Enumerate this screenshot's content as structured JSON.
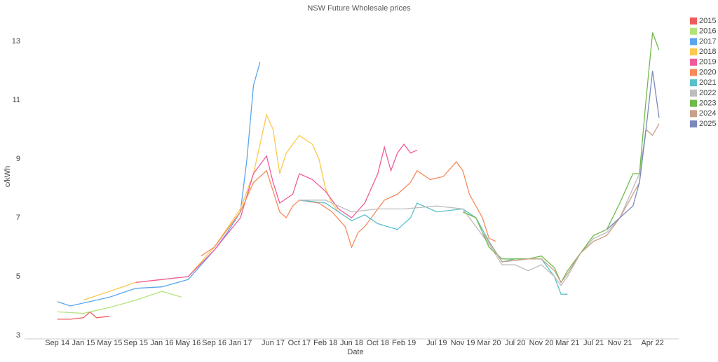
{
  "chart_data": {
    "type": "line",
    "title": "NSW Future Wholesale prices",
    "x_label": "Date",
    "y_label": "c/kWh",
    "xlim": [
      "Apr 14",
      "Aug 22"
    ],
    "ylim": [
      2.88,
      13.74
    ],
    "yticks": [
      3,
      5,
      7,
      9,
      11,
      13
    ],
    "grid": false,
    "legend": "right",
    "xticks": [
      "Sep 14",
      "Jan 15",
      "May 15",
      "Sep 15",
      "Jan 16",
      "May 16",
      "Sep 16",
      "Jan 17",
      "Jun 17",
      "Oct 17",
      "Feb 18",
      "Jun 18",
      "Oct 18",
      "Feb 19",
      "Jul 19",
      "Nov 19",
      "Mar 20",
      "Jul 20",
      "Nov 20",
      "Mar 21",
      "Jul 21",
      "Nov 21",
      "Apr 22"
    ],
    "series": [
      {
        "name": "2015",
        "color": "#ef5b5b",
        "x": [
          "Sep 14",
          "Nov 14",
          "Jan 15",
          "Feb 15",
          "Mar 15",
          "May 15"
        ],
        "values": [
          3.55,
          3.55,
          3.6,
          3.8,
          3.6,
          3.65
        ]
      },
      {
        "name": "2016",
        "color": "#b5e27d",
        "x": [
          "Sep 14",
          "Jan 15",
          "May 15",
          "Sep 15",
          "Jan 16",
          "Apr 16"
        ],
        "values": [
          3.8,
          3.75,
          3.95,
          4.2,
          4.5,
          4.3
        ]
      },
      {
        "name": "2017",
        "color": "#5aa5ef",
        "x": [
          "Sep 14",
          "Nov 14",
          "Jan 15",
          "May 15",
          "Sep 15",
          "Jan 16",
          "May 16",
          "Sep 16",
          "Nov 16",
          "Jan 17",
          "Feb 17",
          "Mar 17",
          "Apr 17"
        ],
        "values": [
          4.15,
          4.0,
          4.1,
          4.3,
          4.6,
          4.65,
          4.9,
          5.9,
          6.5,
          7.2,
          9.0,
          11.5,
          12.3
        ]
      },
      {
        "name": "2018",
        "color": "#fdc84e",
        "x": [
          "Jan 15",
          "May 15",
          "Sep 15",
          "Jan 16",
          "May 16",
          "Sep 16",
          "Jan 17",
          "Mar 17",
          "May 17",
          "Jun 17",
          "Jul 17",
          "Aug 17",
          "Oct 17",
          "Dec 17",
          "Jan 18",
          "Feb 18",
          "Mar 18",
          "Apr 18"
        ],
        "values": [
          4.2,
          4.5,
          4.8,
          4.9,
          5.0,
          6.0,
          7.3,
          8.5,
          10.5,
          10.0,
          8.5,
          9.2,
          9.8,
          9.5,
          9.0,
          8.0,
          7.5,
          7.2
        ]
      },
      {
        "name": "2019",
        "color": "#ef5b9c",
        "x": [
          "Sep 15",
          "Jan 16",
          "May 16",
          "Sep 16",
          "Jan 17",
          "Mar 17",
          "May 17",
          "Jun 17",
          "Jul 17",
          "Sep 17",
          "Oct 17",
          "Dec 17",
          "Feb 18",
          "Apr 18",
          "Jun 18",
          "Aug 18",
          "Oct 18",
          "Nov 18",
          "Dec 18",
          "Jan 19",
          "Feb 19",
          "Mar 19",
          "Apr 19"
        ],
        "values": [
          4.8,
          4.9,
          5.0,
          5.9,
          7.0,
          8.5,
          9.1,
          8.2,
          7.5,
          7.8,
          8.5,
          8.3,
          7.9,
          7.3,
          7.0,
          7.5,
          8.5,
          9.4,
          8.6,
          9.2,
          9.5,
          9.2,
          9.3
        ]
      },
      {
        "name": "2020",
        "color": "#f58a5b",
        "x": [
          "Jul 16",
          "Sep 16",
          "Jan 17",
          "Mar 17",
          "May 17",
          "Jul 17",
          "Aug 17",
          "Sep 17",
          "Oct 17",
          "Jan 18",
          "Mar 18",
          "May 18",
          "Jun 18",
          "Jul 18",
          "Aug 18",
          "Oct 18",
          "Nov 18",
          "Jan 19",
          "Mar 19",
          "Apr 19",
          "Jun 19",
          "Aug 19",
          "Oct 19",
          "Nov 19",
          "Dec 19",
          "Feb 20",
          "Mar 20",
          "Apr 20"
        ],
        "values": [
          5.7,
          6.0,
          7.2,
          8.2,
          8.6,
          7.2,
          7.0,
          7.4,
          7.6,
          7.5,
          7.2,
          6.7,
          6.0,
          6.5,
          6.7,
          7.3,
          7.6,
          7.8,
          8.2,
          8.6,
          8.3,
          8.4,
          8.9,
          8.6,
          7.8,
          7.0,
          6.3,
          6.2
        ]
      },
      {
        "name": "2021",
        "color": "#5bc0c9",
        "x": [
          "Oct 17",
          "Feb 18",
          "Jun 18",
          "Aug 18",
          "Oct 18",
          "Jan 19",
          "Mar 19",
          "Apr 19",
          "Jul 19",
          "Nov 19",
          "Jan 20",
          "Mar 20",
          "May 20",
          "Jul 20",
          "Sep 20",
          "Nov 20",
          "Jan 21",
          "Feb 21",
          "Mar 21"
        ],
        "values": [
          7.6,
          7.5,
          6.9,
          7.1,
          6.8,
          6.6,
          7.0,
          7.5,
          7.2,
          7.3,
          7.0,
          6.2,
          5.5,
          5.6,
          5.6,
          5.6,
          5.0,
          4.4,
          4.4
        ]
      },
      {
        "name": "2022",
        "color": "#bdbdbd",
        "x": [
          "Oct 17",
          "Feb 18",
          "Jun 18",
          "Oct 18",
          "Feb 19",
          "Jul 19",
          "Nov 19",
          "Mar 20",
          "May 20",
          "Jul 20",
          "Sep 20",
          "Nov 20",
          "Jan 21",
          "Feb 21",
          "Mar 21",
          "May 21",
          "Jul 21",
          "Sep 21",
          "Nov 21",
          "Jan 22",
          "Feb 22",
          "Mar 22"
        ],
        "values": [
          7.6,
          7.6,
          7.2,
          7.3,
          7.3,
          7.4,
          7.3,
          6.1,
          5.4,
          5.4,
          5.2,
          5.4,
          5.0,
          4.7,
          5.0,
          5.8,
          6.3,
          6.5,
          7.0,
          8.0,
          8.5,
          10.0
        ]
      },
      {
        "name": "2023",
        "color": "#6fba4c",
        "x": [
          "Nov 19",
          "Jan 20",
          "Mar 20",
          "May 20",
          "Jul 20",
          "Sep 20",
          "Nov 20",
          "Jan 21",
          "Feb 21",
          "Mar 21",
          "May 21",
          "Jul 21",
          "Sep 21",
          "Nov 21",
          "Jan 22",
          "Feb 22",
          "Mar 22",
          "Apr 22",
          "May 22"
        ],
        "values": [
          7.2,
          7.0,
          6.0,
          5.6,
          5.6,
          5.6,
          5.7,
          5.3,
          4.8,
          5.2,
          5.8,
          6.4,
          6.6,
          7.5,
          8.5,
          8.5,
          11.0,
          13.3,
          12.7
        ]
      },
      {
        "name": "2024",
        "color": "#c8a08a",
        "x": [
          "Feb 20",
          "May 20",
          "Sep 20",
          "Nov 20",
          "Jan 21",
          "Feb 21",
          "Mar 21",
          "May 21",
          "Jul 21",
          "Sep 21",
          "Nov 21",
          "Jan 22",
          "Feb 22",
          "Mar 22",
          "Apr 22",
          "May 22"
        ],
        "values": [
          6.5,
          5.5,
          5.6,
          5.6,
          5.2,
          4.8,
          5.1,
          5.8,
          6.2,
          6.4,
          7.0,
          7.8,
          8.2,
          10.0,
          9.8,
          10.2
        ]
      },
      {
        "name": "2025",
        "color": "#7b88b8",
        "x": [
          "Sep 21",
          "Nov 21",
          "Jan 22",
          "Feb 22",
          "Mar 22",
          "Apr 22",
          "May 22"
        ],
        "values": [
          6.6,
          7.0,
          7.4,
          8.2,
          10.0,
          12.0,
          10.4
        ]
      }
    ]
  }
}
